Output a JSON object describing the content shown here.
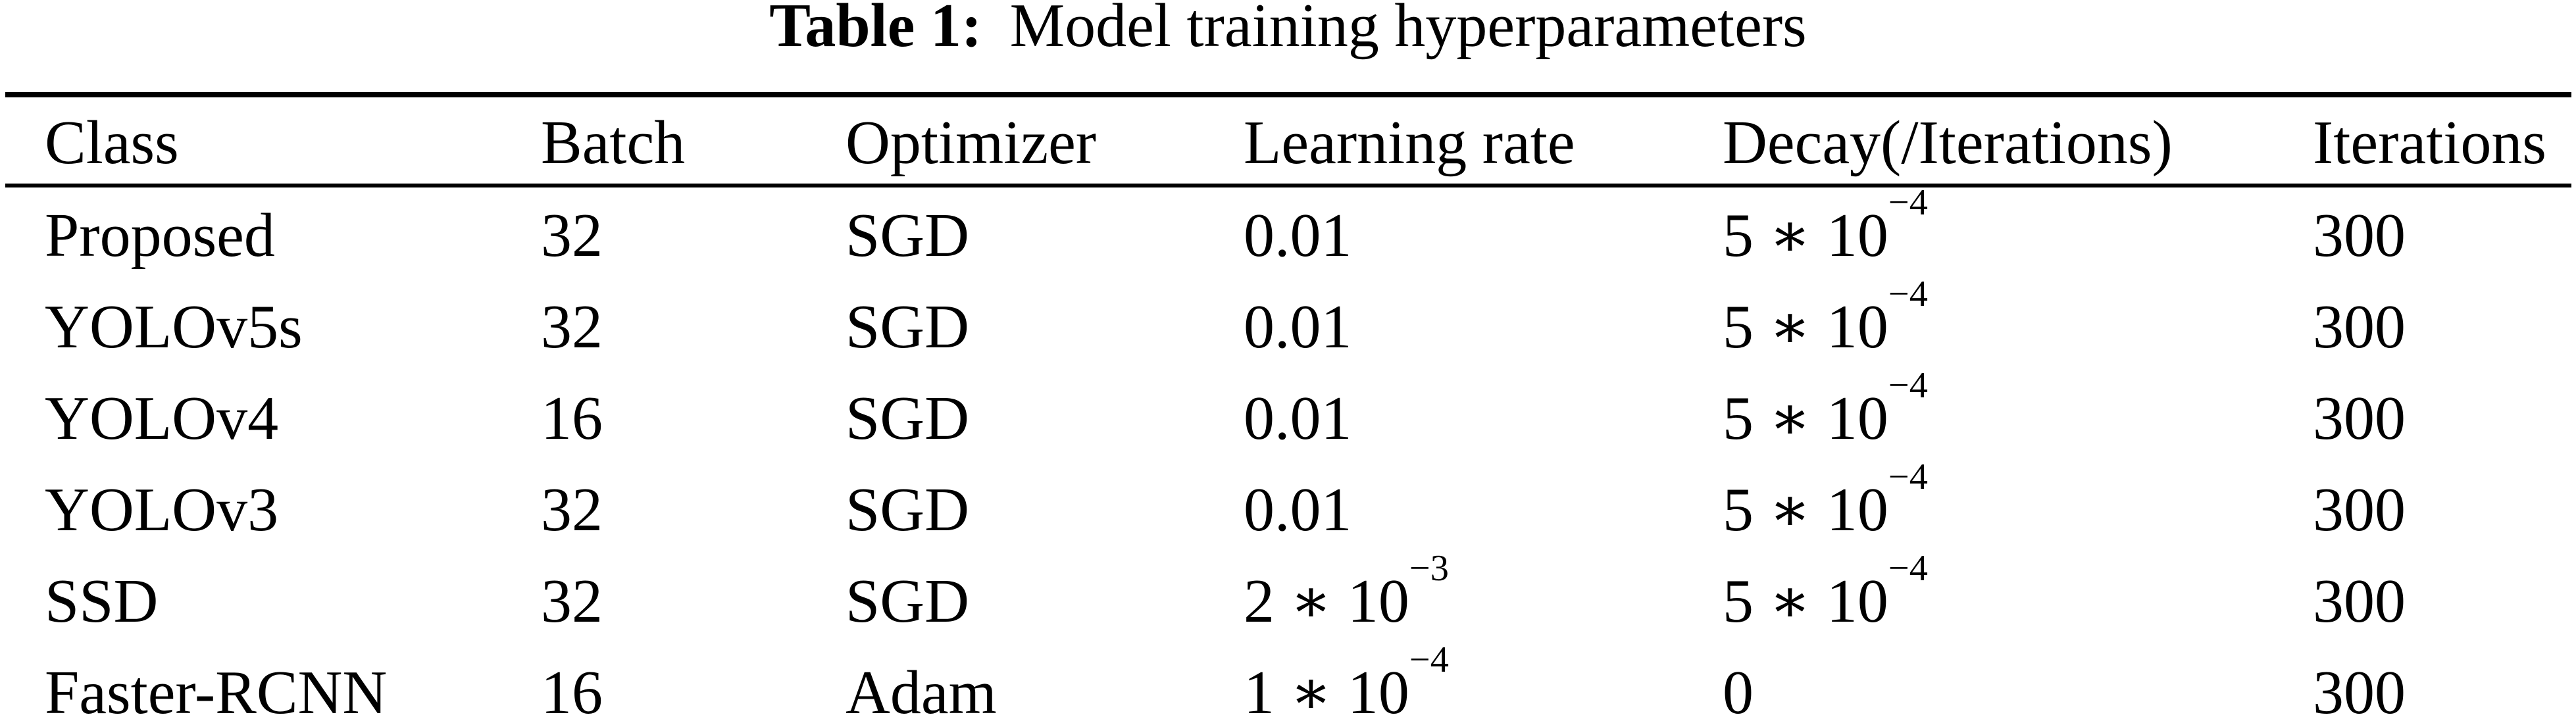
{
  "caption": {
    "label": "Table 1:",
    "text": "Model training hyperparameters"
  },
  "table": {
    "columns": [
      "Class",
      "Batch",
      "Optimizer",
      "Learning rate",
      "Decay(/Iterations)",
      "Iterations"
    ],
    "rows": [
      {
        "class": "Proposed",
        "batch": "32",
        "optimizer": "SGD",
        "learning_rate": {
          "base": "0.01",
          "sup": ""
        },
        "decay": {
          "base": "5 ∗ 10",
          "sup": "−4"
        },
        "iterations": "300"
      },
      {
        "class": "YOLOv5s",
        "batch": "32",
        "optimizer": "SGD",
        "learning_rate": {
          "base": "0.01",
          "sup": ""
        },
        "decay": {
          "base": "5 ∗ 10",
          "sup": "−4"
        },
        "iterations": "300"
      },
      {
        "class": "YOLOv4",
        "batch": "16",
        "optimizer": "SGD",
        "learning_rate": {
          "base": "0.01",
          "sup": ""
        },
        "decay": {
          "base": "5 ∗ 10",
          "sup": "−4"
        },
        "iterations": "300"
      },
      {
        "class": "YOLOv3",
        "batch": "32",
        "optimizer": "SGD",
        "learning_rate": {
          "base": "0.01",
          "sup": ""
        },
        "decay": {
          "base": "5 ∗ 10",
          "sup": "−4"
        },
        "iterations": "300"
      },
      {
        "class": "SSD",
        "batch": "32",
        "optimizer": "SGD",
        "learning_rate": {
          "base": "2 ∗ 10",
          "sup": "−3"
        },
        "decay": {
          "base": "5 ∗ 10",
          "sup": "−4"
        },
        "iterations": "300"
      },
      {
        "class": "Faster-RCNN",
        "batch": "16",
        "optimizer": "Adam",
        "learning_rate": {
          "base": "1 ∗ 10",
          "sup": "−4"
        },
        "decay": {
          "base": "0",
          "sup": ""
        },
        "iterations": "300"
      }
    ]
  },
  "colors": {
    "text": "#000000",
    "background": "#ffffff",
    "rule": "#000000"
  }
}
